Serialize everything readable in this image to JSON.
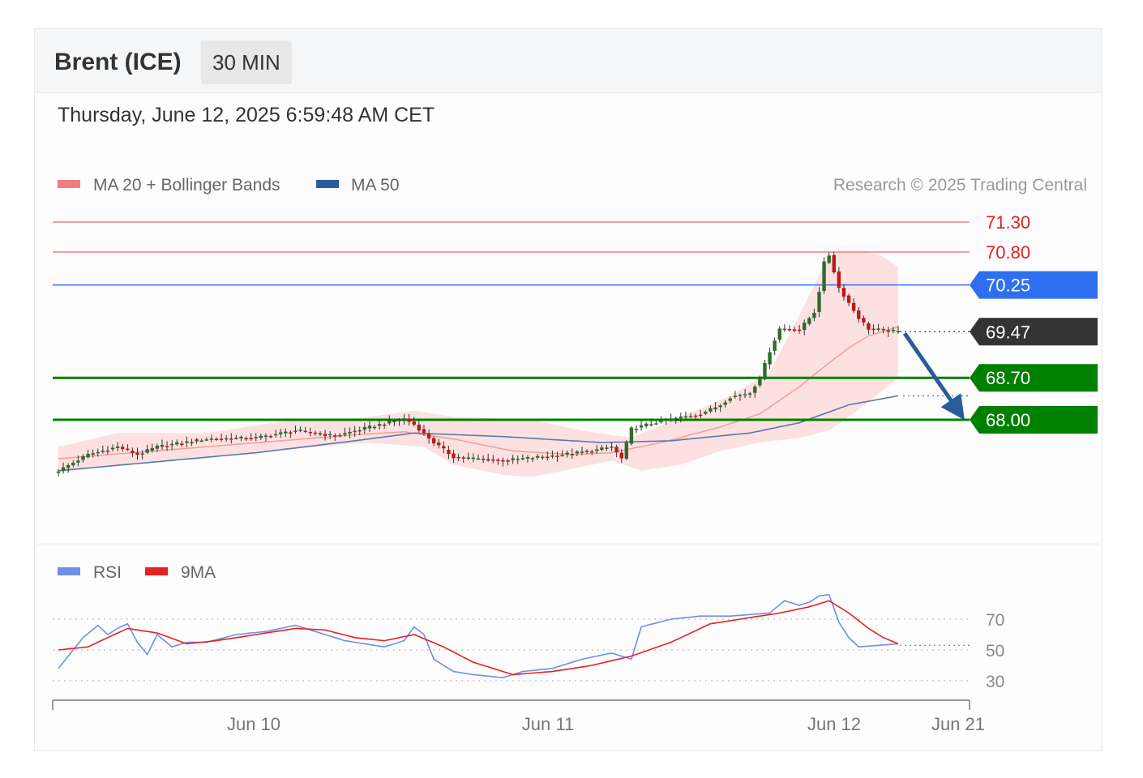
{
  "header": {
    "title": "Brent (ICE)",
    "timeframe": "30 MIN"
  },
  "datetime": "Thursday, June 12, 2025 6:59:48 AM CET",
  "legend": {
    "ma20": "MA 20 + Bollinger Bands",
    "ma50": "MA 50",
    "rsi": "RSI",
    "ma9": "9MA"
  },
  "credit": "Research © 2025 Trading Central",
  "colors": {
    "resistance": "#f08080",
    "pivot": "#2d6ff0",
    "last": "#333333",
    "support": "#008000",
    "arrow": "#2b5c9a",
    "rsi": "#6f8fe8",
    "ma9": "#e82020",
    "bb": "#fde1e1",
    "ma20": "#f3a0a0",
    "ma50": "#5878b0",
    "candleUp": "#2e6b2e",
    "candleDown": "#c01818"
  },
  "chart_data": [
    {
      "type": "line",
      "title": "Brent (ICE) 30 MIN",
      "ylim": [
        67.05,
        71.45
      ],
      "levels": [
        {
          "label": "71.30",
          "value": 71.3,
          "kind": "resistance"
        },
        {
          "label": "70.80",
          "value": 70.8,
          "kind": "resistance"
        },
        {
          "label": "70.25",
          "value": 70.25,
          "kind": "pivot"
        },
        {
          "label": "69.47",
          "value": 69.47,
          "kind": "last"
        },
        {
          "label": "68.70",
          "value": 68.7,
          "kind": "support"
        },
        {
          "label": "68.00",
          "value": 68.0,
          "kind": "support"
        }
      ],
      "x_ticks": [
        "Jun 10",
        "Jun 11",
        "Jun 12",
        "Jun 21"
      ],
      "forecast": {
        "from": 69.47,
        "to": 68.0,
        "direction": "down"
      },
      "price_anchors": [
        [
          0,
          67.15
        ],
        [
          6,
          67.42
        ],
        [
          12,
          67.55
        ],
        [
          16,
          67.42
        ],
        [
          20,
          67.55
        ],
        [
          30,
          67.68
        ],
        [
          40,
          67.7
        ],
        [
          48,
          67.82
        ],
        [
          56,
          67.73
        ],
        [
          64,
          67.9
        ],
        [
          70,
          68.02
        ],
        [
          72,
          67.92
        ],
        [
          76,
          67.62
        ],
        [
          80,
          67.38
        ],
        [
          90,
          67.32
        ],
        [
          100,
          67.4
        ],
        [
          108,
          67.48
        ],
        [
          112,
          67.55
        ],
        [
          114,
          67.35
        ],
        [
          116,
          67.85
        ],
        [
          122,
          67.98
        ],
        [
          130,
          68.1
        ],
        [
          134,
          68.25
        ],
        [
          136,
          68.38
        ],
        [
          140,
          68.45
        ],
        [
          142,
          68.7
        ],
        [
          144,
          69.15
        ],
        [
          146,
          69.52
        ],
        [
          150,
          69.5
        ],
        [
          153,
          69.8
        ],
        [
          154,
          70.15
        ],
        [
          155,
          70.62
        ],
        [
          156,
          70.75
        ],
        [
          158,
          70.2
        ],
        [
          160,
          69.95
        ],
        [
          162,
          69.7
        ],
        [
          164,
          69.52
        ],
        [
          170,
          69.47
        ]
      ],
      "ma20_anchors": [
        [
          0,
          67.35
        ],
        [
          30,
          67.55
        ],
        [
          60,
          67.75
        ],
        [
          70,
          67.8
        ],
        [
          80,
          67.68
        ],
        [
          92,
          67.48
        ],
        [
          104,
          67.42
        ],
        [
          112,
          67.45
        ],
        [
          122,
          67.62
        ],
        [
          134,
          67.88
        ],
        [
          142,
          68.1
        ],
        [
          150,
          68.55
        ],
        [
          156,
          68.95
        ],
        [
          160,
          69.2
        ],
        [
          164,
          69.4
        ],
        [
          170,
          69.55
        ]
      ],
      "ma50_anchors": [
        [
          0,
          67.15
        ],
        [
          40,
          67.45
        ],
        [
          60,
          67.65
        ],
        [
          72,
          67.78
        ],
        [
          90,
          67.72
        ],
        [
          110,
          67.62
        ],
        [
          124,
          67.65
        ],
        [
          140,
          67.78
        ],
        [
          150,
          67.95
        ],
        [
          160,
          68.25
        ],
        [
          170,
          68.4
        ]
      ],
      "bb_upper_anchors": [
        [
          0,
          67.55
        ],
        [
          12,
          67.78
        ],
        [
          30,
          67.78
        ],
        [
          46,
          67.98
        ],
        [
          58,
          68.0
        ],
        [
          72,
          68.15
        ],
        [
          80,
          68.05
        ],
        [
          96,
          68.0
        ],
        [
          106,
          67.82
        ],
        [
          116,
          67.7
        ],
        [
          126,
          68.05
        ],
        [
          136,
          68.4
        ],
        [
          144,
          68.8
        ],
        [
          150,
          69.75
        ],
        [
          155,
          70.58
        ],
        [
          158,
          70.83
        ],
        [
          163,
          70.83
        ],
        [
          167,
          70.72
        ],
        [
          170,
          70.55
        ]
      ],
      "bb_lower_anchors": [
        [
          0,
          67.12
        ],
        [
          10,
          67.22
        ],
        [
          30,
          67.38
        ],
        [
          46,
          67.5
        ],
        [
          62,
          67.62
        ],
        [
          74,
          67.55
        ],
        [
          80,
          67.25
        ],
        [
          90,
          67.08
        ],
        [
          96,
          67.05
        ],
        [
          104,
          67.18
        ],
        [
          112,
          67.32
        ],
        [
          118,
          67.15
        ],
        [
          126,
          67.25
        ],
        [
          134,
          67.48
        ],
        [
          142,
          67.62
        ],
        [
          150,
          67.7
        ],
        [
          156,
          67.82
        ],
        [
          160,
          68.05
        ],
        [
          164,
          68.3
        ],
        [
          170,
          68.7
        ]
      ]
    },
    {
      "type": "line",
      "title": "RSI",
      "ylim": [
        25,
        85
      ],
      "reference_lines": [
        30,
        50,
        70
      ],
      "y_ticks": [
        "70",
        "50",
        "30"
      ],
      "series": [
        {
          "name": "RSI",
          "anchors": [
            [
              0,
              38
            ],
            [
              3,
              50
            ],
            [
              5,
              58
            ],
            [
              8,
              66
            ],
            [
              10,
              60
            ],
            [
              12,
              64
            ],
            [
              14,
              67
            ],
            [
              16,
              55
            ],
            [
              18,
              47
            ],
            [
              20,
              60
            ],
            [
              23,
              52
            ],
            [
              26,
              55
            ],
            [
              30,
              55
            ],
            [
              36,
              60
            ],
            [
              42,
              62
            ],
            [
              48,
              66
            ],
            [
              54,
              60
            ],
            [
              58,
              56
            ],
            [
              62,
              54
            ],
            [
              66,
              52
            ],
            [
              70,
              56
            ],
            [
              72,
              65
            ],
            [
              74,
              60
            ],
            [
              76,
              44
            ],
            [
              80,
              36
            ],
            [
              84,
              34
            ],
            [
              90,
              32
            ],
            [
              94,
              36
            ],
            [
              100,
              38
            ],
            [
              106,
              44
            ],
            [
              112,
              48
            ],
            [
              116,
              44
            ],
            [
              118,
              65
            ],
            [
              124,
              70
            ],
            [
              130,
              72
            ],
            [
              136,
              72
            ],
            [
              144,
              74
            ],
            [
              147,
              82
            ],
            [
              150,
              79
            ],
            [
              152,
              81
            ],
            [
              154,
              85
            ],
            [
              156,
              86
            ],
            [
              158,
              68
            ],
            [
              160,
              58
            ],
            [
              162,
              52
            ],
            [
              166,
              53
            ],
            [
              170,
              54
            ]
          ]
        },
        {
          "name": "9MA",
          "anchors": [
            [
              0,
              50
            ],
            [
              6,
              52
            ],
            [
              10,
              58
            ],
            [
              14,
              64
            ],
            [
              20,
              61
            ],
            [
              26,
              54
            ],
            [
              32,
              56
            ],
            [
              40,
              60
            ],
            [
              48,
              64
            ],
            [
              54,
              63
            ],
            [
              60,
              58
            ],
            [
              66,
              56
            ],
            [
              72,
              60
            ],
            [
              78,
              52
            ],
            [
              84,
              42
            ],
            [
              92,
              34
            ],
            [
              100,
              36
            ],
            [
              108,
              40
            ],
            [
              116,
              46
            ],
            [
              124,
              55
            ],
            [
              132,
              67
            ],
            [
              138,
              70
            ],
            [
              146,
              74
            ],
            [
              152,
              78
            ],
            [
              156,
              82
            ],
            [
              160,
              74
            ],
            [
              164,
              64
            ],
            [
              167,
              58
            ],
            [
              170,
              54
            ]
          ]
        }
      ]
    }
  ]
}
